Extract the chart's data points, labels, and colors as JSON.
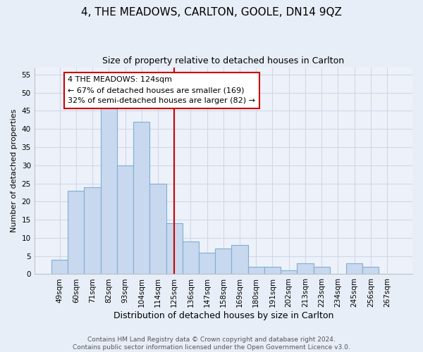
{
  "title": "4, THE MEADOWS, CARLTON, GOOLE, DN14 9QZ",
  "subtitle": "Size of property relative to detached houses in Carlton",
  "xlabel": "Distribution of detached houses by size in Carlton",
  "ylabel": "Number of detached properties",
  "footer_line1": "Contains HM Land Registry data © Crown copyright and database right 2024.",
  "footer_line2": "Contains public sector information licensed under the Open Government Licence v3.0.",
  "categories": [
    "49sqm",
    "60sqm",
    "71sqm",
    "82sqm",
    "93sqm",
    "104sqm",
    "114sqm",
    "125sqm",
    "136sqm",
    "147sqm",
    "158sqm",
    "169sqm",
    "180sqm",
    "191sqm",
    "202sqm",
    "213sqm",
    "223sqm",
    "234sqm",
    "245sqm",
    "256sqm",
    "267sqm"
  ],
  "values": [
    4,
    23,
    24,
    46,
    30,
    42,
    25,
    14,
    9,
    6,
    7,
    8,
    2,
    2,
    1,
    3,
    2,
    0,
    3,
    2,
    0
  ],
  "bar_color": "#c8d8ee",
  "bar_edge_color": "#7fafd4",
  "vline_color": "#cc0000",
  "vline_position": 7.5,
  "annotation_title": "4 THE MEADOWS: 124sqm",
  "annotation_line1": "← 67% of detached houses are smaller (169)",
  "annotation_line2": "32% of semi-detached houses are larger (82) →",
  "annotation_box_edge_color": "#cc0000",
  "ylim": [
    0,
    57
  ],
  "yticks": [
    0,
    5,
    10,
    15,
    20,
    25,
    30,
    35,
    40,
    45,
    50,
    55
  ],
  "background_color": "#e8eef8",
  "plot_bg_color": "#edf1f9",
  "grid_color": "#d0d8e8",
  "title_fontsize": 11,
  "subtitle_fontsize": 9,
  "xlabel_fontsize": 9,
  "ylabel_fontsize": 8,
  "tick_fontsize": 7.5,
  "annotation_fontsize": 8,
  "footer_fontsize": 6.5
}
